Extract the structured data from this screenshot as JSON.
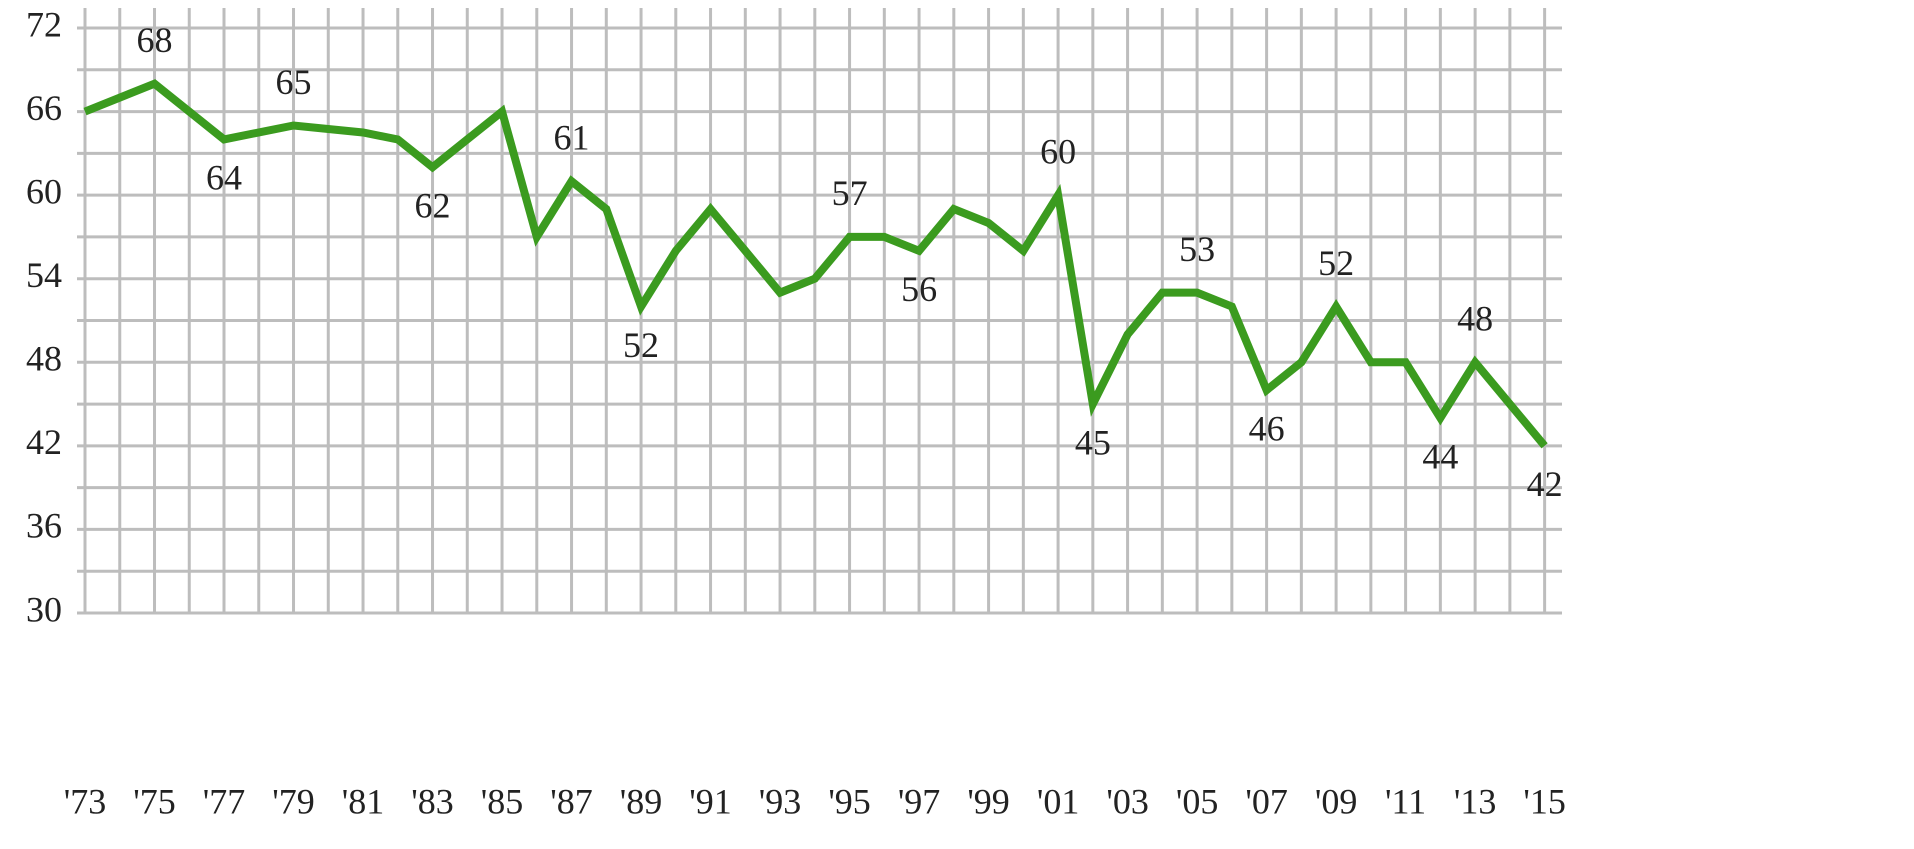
{
  "chart_data": {
    "type": "line",
    "x": [
      1973,
      1975,
      1977,
      1979,
      1981,
      1982,
      1983,
      1984,
      1985,
      1986,
      1987,
      1988,
      1989,
      1990,
      1991,
      1992,
      1993,
      1994,
      1995,
      1996,
      1997,
      1998,
      1999,
      2000,
      2001,
      2002,
      2003,
      2004,
      2005,
      2006,
      2007,
      2008,
      2009,
      2010,
      2011,
      2012,
      2013,
      2015
    ],
    "series": [
      {
        "color": "#3b9b1f",
        "values": [
          66,
          68,
          64,
          65,
          64.5,
          64,
          62,
          64,
          66,
          57,
          61,
          59,
          52,
          56,
          59,
          56,
          53,
          54,
          57,
          57,
          56,
          59,
          58,
          56,
          60,
          45,
          50,
          53,
          53,
          52,
          46,
          48,
          52,
          48,
          48,
          44,
          48,
          42
        ],
        "value_labels": [
          null,
          "68",
          "64",
          "65",
          null,
          null,
          "62",
          null,
          null,
          null,
          "61",
          null,
          "52",
          null,
          null,
          null,
          null,
          null,
          "57",
          null,
          "56",
          null,
          null,
          null,
          "60",
          "45",
          null,
          null,
          "53",
          null,
          "46",
          null,
          "52",
          null,
          null,
          "44",
          "48",
          "42"
        ]
      }
    ],
    "xlim": [
      1973,
      2015.5
    ],
    "xticks": [
      {
        "value": 1973,
        "label": "'73"
      },
      {
        "value": 1975,
        "label": "'75"
      },
      {
        "value": 1977,
        "label": "'77"
      },
      {
        "value": 1979,
        "label": "'79"
      },
      {
        "value": 1981,
        "label": "'81"
      },
      {
        "value": 1983,
        "label": "'83"
      },
      {
        "value": 1985,
        "label": "'85"
      },
      {
        "value": 1987,
        "label": "'87"
      },
      {
        "value": 1989,
        "label": "'89"
      },
      {
        "value": 1991,
        "label": "'91"
      },
      {
        "value": 1993,
        "label": "'93"
      },
      {
        "value": 1995,
        "label": "'95"
      },
      {
        "value": 1997,
        "label": "'97"
      },
      {
        "value": 1999,
        "label": "'99"
      },
      {
        "value": 2001,
        "label": "'01"
      },
      {
        "value": 2003,
        "label": "'03"
      },
      {
        "value": 2005,
        "label": "'05"
      },
      {
        "value": 2007,
        "label": "'07"
      },
      {
        "value": 2009,
        "label": "'09"
      },
      {
        "value": 2011,
        "label": "'11"
      },
      {
        "value": 2013,
        "label": "'13"
      },
      {
        "value": 2015,
        "label": "'15"
      }
    ],
    "ylim": [
      30,
      72
    ],
    "yticks": [
      30,
      36,
      42,
      48,
      54,
      60,
      66,
      72
    ],
    "grid": true
  }
}
